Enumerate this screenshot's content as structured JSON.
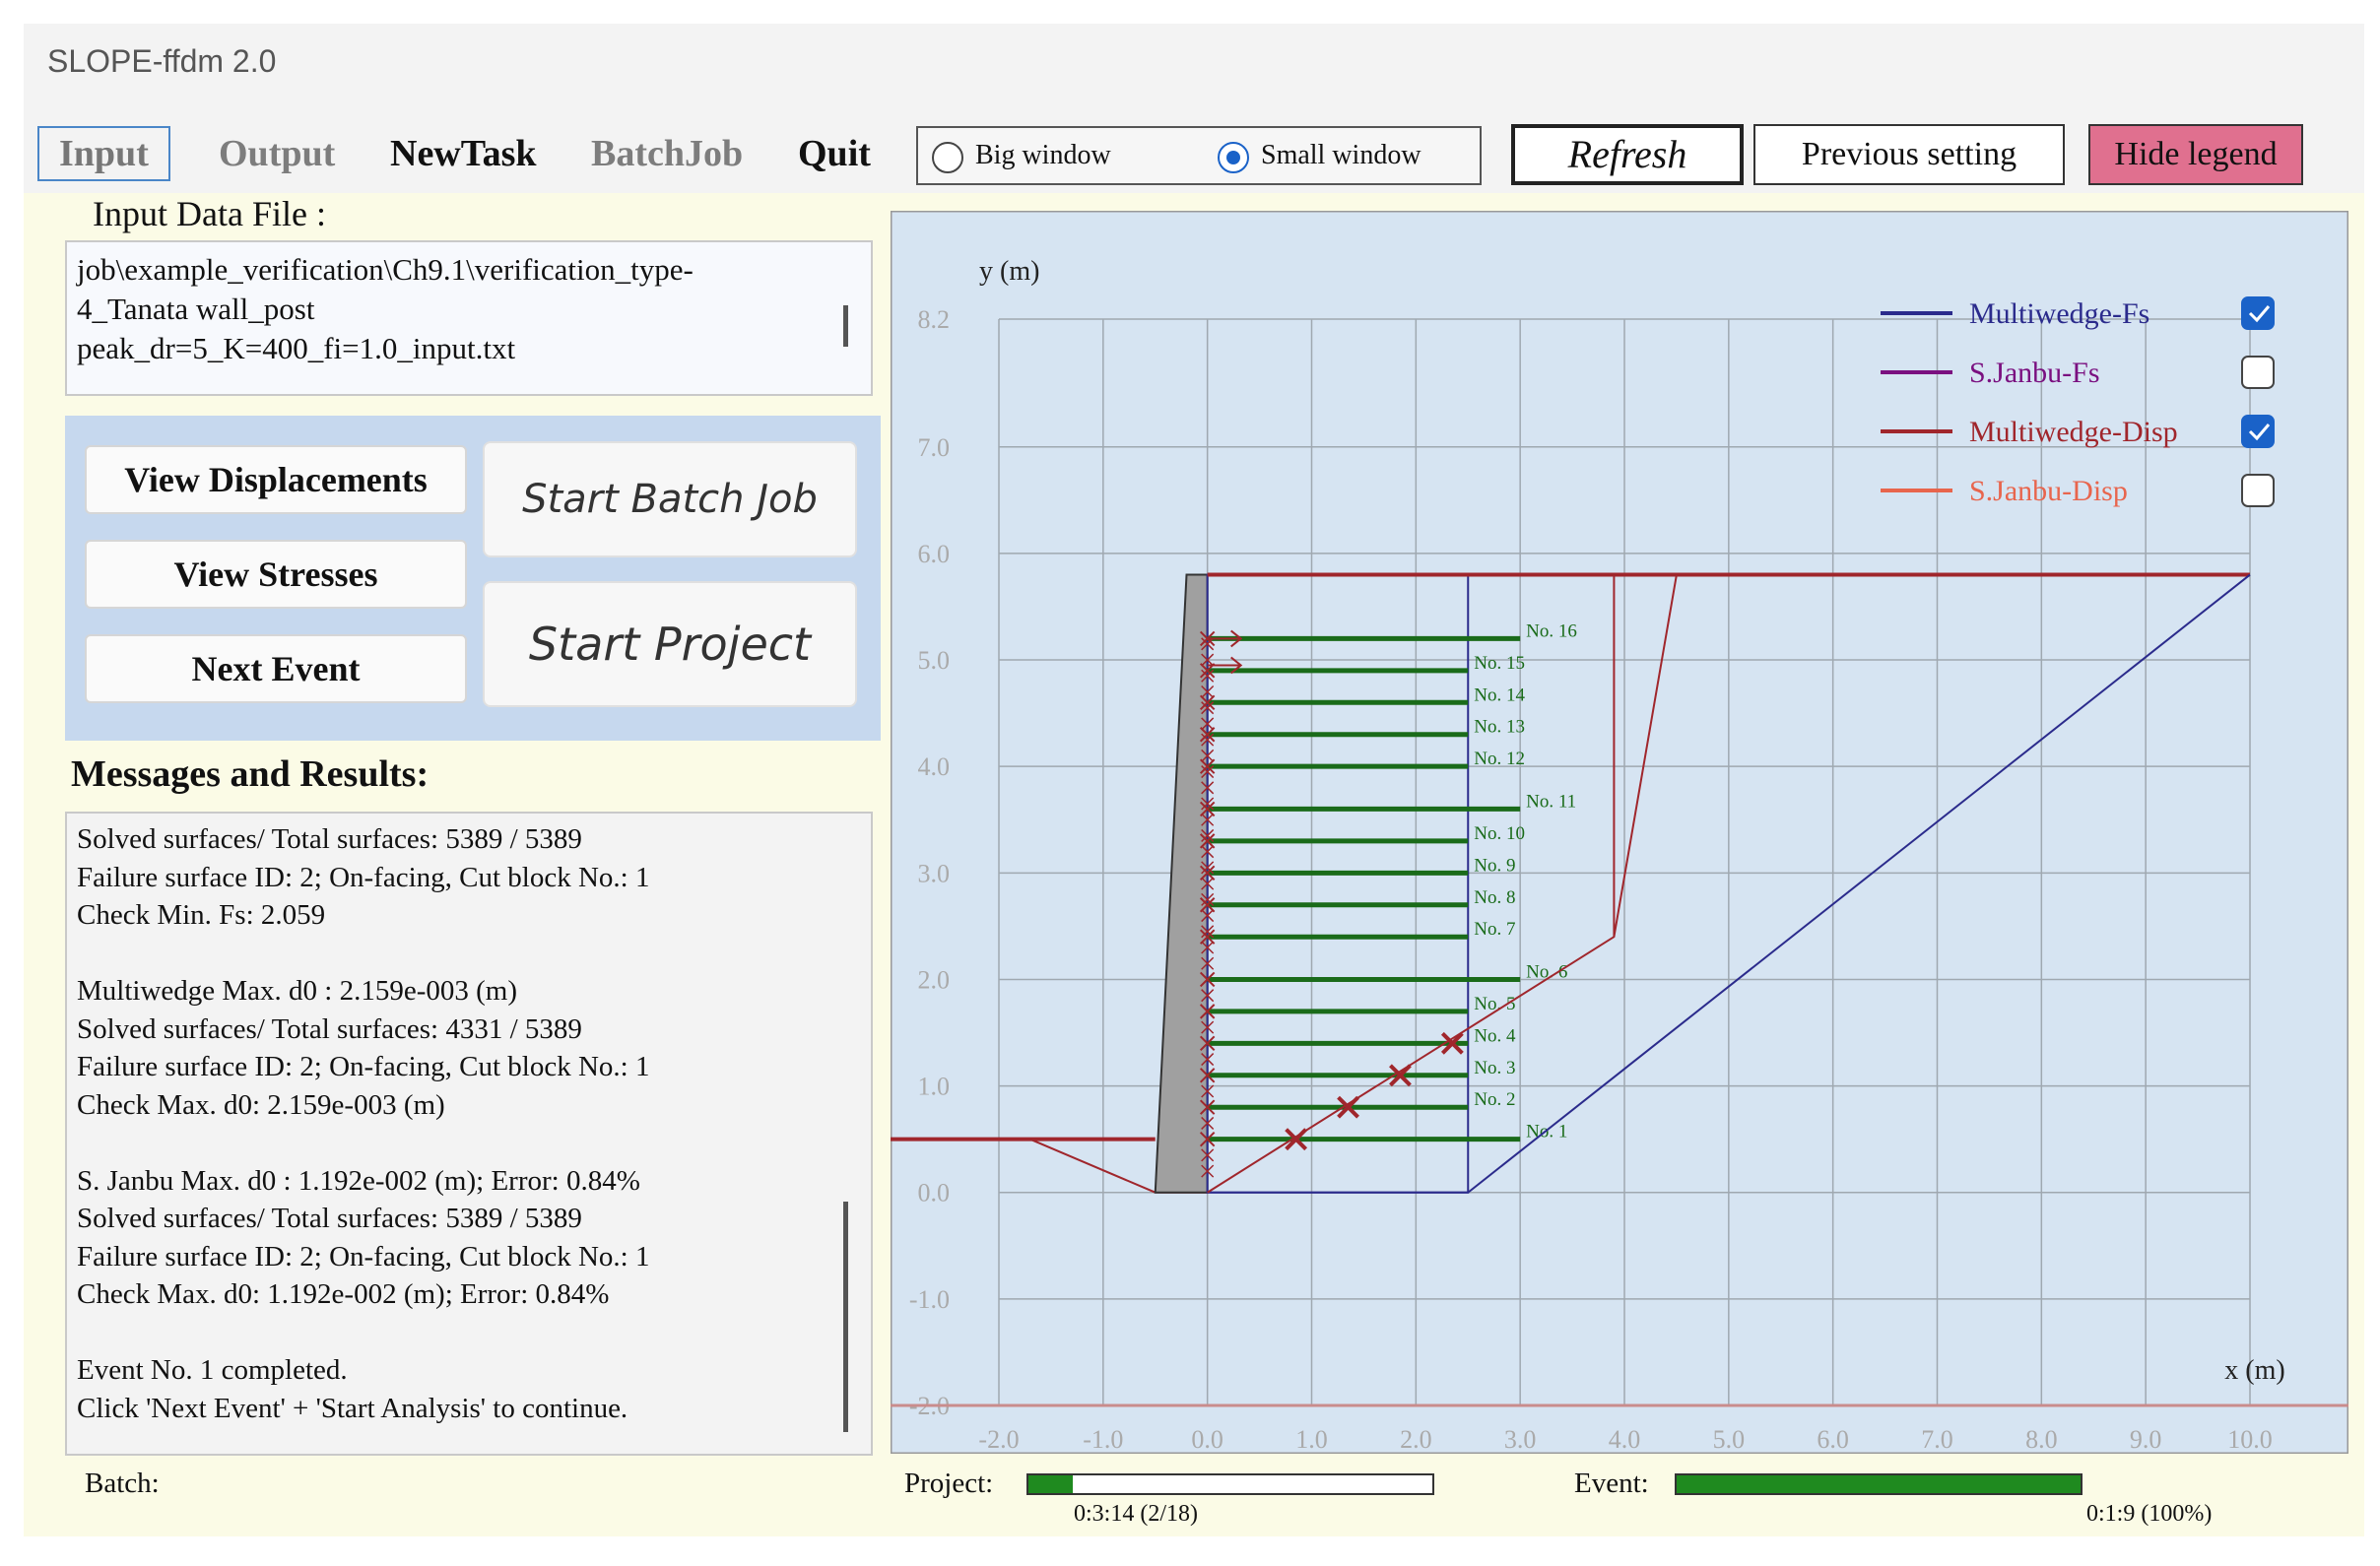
{
  "window": {
    "title": "SLOPE-ffdm 2.0"
  },
  "menu": {
    "input": "Input",
    "output": "Output",
    "newtask": "NewTask",
    "batchjob": "BatchJob",
    "quit": "Quit"
  },
  "radios": {
    "big": "Big window",
    "small": "Small window",
    "selected": "Small window"
  },
  "toolbar": {
    "refresh": "Refresh",
    "previous": "Previous setting",
    "hide_legend": "Hide legend",
    "hide_legend_color": "#e0708f"
  },
  "input_file": {
    "label": "Input Data File :",
    "lines": [
      "job\\example_verification\\Ch9.1\\verification_type-",
      "4_Tanata wall_post",
      "peak_dr=5_K=400_fi=1.0_input.txt"
    ]
  },
  "buttons": {
    "view_displacements": "View Displacements",
    "view_stresses": "View Stresses",
    "next_event": "Next Event",
    "start_batch": "Start Batch Job",
    "start_project": "Start Project"
  },
  "messages": {
    "title": "Messages and Results:",
    "lines": [
      "Solved surfaces/ Total surfaces: 5389 / 5389",
      "Failure surface ID: 2; On-facing, Cut block No.: 1",
      "Check Min. Fs: 2.059",
      "",
      "Multiwedge Max. d0 : 2.159e-003 (m)",
      "Solved surfaces/ Total surfaces: 4331 / 5389",
      "Failure surface ID: 2; On-facing, Cut block No.: 1",
      "Check Max. d0: 2.159e-003 (m)",
      "",
      "S. Janbu Max. d0 : 1.192e-002 (m); Error: 0.84%",
      "Solved surfaces/ Total surfaces: 5389 / 5389",
      "Failure surface ID: 2; On-facing, Cut block No.: 1",
      "Check Max. d0: 1.192e-002 (m); Error: 0.84%",
      "",
      "Event No. 1 completed.",
      "Click 'Next Event' + 'Start Analysis' to continue."
    ]
  },
  "status": {
    "batch_label": "Batch:",
    "project_label": "Project:",
    "project_progress": 0.11,
    "project_text": "0:3:14 (2/18)",
    "event_label": "Event:",
    "event_progress": 1.0,
    "event_text": "0:1:9 (100%)"
  },
  "chart_data": {
    "type": "line",
    "xlabel": "x (m)",
    "ylabel": "y (m)",
    "xlim": [
      -2.0,
      10.0
    ],
    "ylim": [
      -2.0,
      8.2
    ],
    "xticks": [
      "-2.0",
      "-1.0",
      "0.0",
      "1.0",
      "2.0",
      "3.0",
      "4.0",
      "5.0",
      "6.0",
      "7.0",
      "8.0",
      "9.0",
      "10.0"
    ],
    "yticks": [
      "-2.0",
      "-1.0",
      "0.0",
      "1.0",
      "2.0",
      "3.0",
      "4.0",
      "5.0",
      "6.0",
      "7.0",
      "8.2"
    ],
    "grid": true,
    "background": "#d6e4f2",
    "legend_position": "top-right",
    "legend": [
      {
        "name": "Multiwedge-Fs",
        "color": "#2b2b8c",
        "checked": true
      },
      {
        "name": "S.Janbu-Fs",
        "color": "#7a1080",
        "checked": false
      },
      {
        "name": "Multiwedge-Disp",
        "color": "#a0262c",
        "checked": true
      },
      {
        "name": "S.Janbu-Disp",
        "color": "#e8654d",
        "checked": false
      }
    ],
    "series": [
      {
        "name": "Multiwedge-Fs",
        "points": [
          [
            0.0,
            0.0
          ],
          [
            2.5,
            0.0
          ],
          [
            10.0,
            5.8
          ]
        ]
      },
      {
        "name": "Multiwedge-Disp",
        "points": [
          [
            0.0,
            0.0
          ],
          [
            3.9,
            2.4
          ],
          [
            4.5,
            5.8
          ]
        ]
      }
    ],
    "reinforcements": [
      {
        "label": "No. 1",
        "y": 0.5,
        "length": 3.0
      },
      {
        "label": "No. 2",
        "y": 0.8,
        "length": 2.5
      },
      {
        "label": "No. 3",
        "y": 1.1,
        "length": 2.5
      },
      {
        "label": "No. 4",
        "y": 1.4,
        "length": 2.5
      },
      {
        "label": "No. 5",
        "y": 1.7,
        "length": 2.5
      },
      {
        "label": "No. 6",
        "y": 2.0,
        "length": 3.0
      },
      {
        "label": "No. 7",
        "y": 2.4,
        "length": 2.5
      },
      {
        "label": "No. 8",
        "y": 2.7,
        "length": 2.5
      },
      {
        "label": "No. 9",
        "y": 3.0,
        "length": 2.5
      },
      {
        "label": "No. 10",
        "y": 3.3,
        "length": 2.5
      },
      {
        "label": "No. 11",
        "y": 3.6,
        "length": 3.0
      },
      {
        "label": "No. 12",
        "y": 4.0,
        "length": 2.5
      },
      {
        "label": "No. 13",
        "y": 4.3,
        "length": 2.5
      },
      {
        "label": "No. 14",
        "y": 4.6,
        "length": 2.5
      },
      {
        "label": "No. 15",
        "y": 4.9,
        "length": 2.5
      },
      {
        "label": "No. 16",
        "y": 5.2,
        "length": 3.0
      }
    ],
    "failure_marks": [
      [
        0.85,
        0.5
      ],
      [
        1.35,
        0.8
      ],
      [
        1.85,
        1.1
      ],
      [
        2.35,
        1.4
      ]
    ],
    "wall_color": "#a0a0a0",
    "ground_level": 0.5,
    "backfill_top": 5.8
  }
}
